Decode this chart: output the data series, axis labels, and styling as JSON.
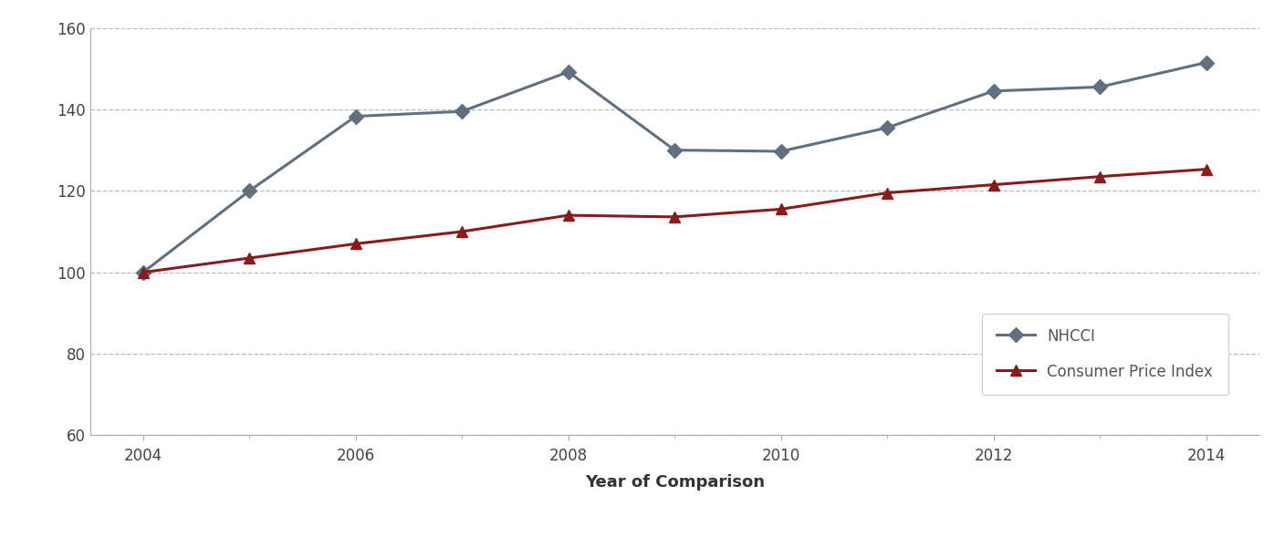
{
  "years": [
    2004,
    2005,
    2006,
    2007,
    2008,
    2009,
    2010,
    2011,
    2012,
    2013,
    2014
  ],
  "nhcci": [
    100.0,
    120.0,
    138.3,
    139.5,
    149.2,
    130.0,
    129.7,
    135.5,
    144.5,
    145.5,
    151.5
  ],
  "cpi": [
    100.0,
    103.5,
    107.0,
    110.0,
    114.0,
    113.6,
    115.5,
    119.5,
    121.5,
    123.5,
    125.3
  ],
  "nhcci_color": "#607080",
  "cpi_color": "#8b1a1a",
  "nhcci_label": "NHCCI",
  "cpi_label": "Consumer Price Index",
  "legend_text_color": "#555555",
  "xlabel": "Year of Comparison",
  "ylim": [
    60,
    160
  ],
  "yticks": [
    60,
    80,
    100,
    120,
    140,
    160
  ],
  "xticks": [
    2004,
    2006,
    2008,
    2010,
    2012,
    2014
  ],
  "xminor_ticks": [
    2004,
    2005,
    2006,
    2007,
    2008,
    2009,
    2010,
    2011,
    2012,
    2013,
    2014
  ],
  "background_color": "#ffffff",
  "grid_color": "#bbbbbb",
  "spine_color": "#aaaaaa",
  "linewidth": 2.2,
  "markersize": 8
}
